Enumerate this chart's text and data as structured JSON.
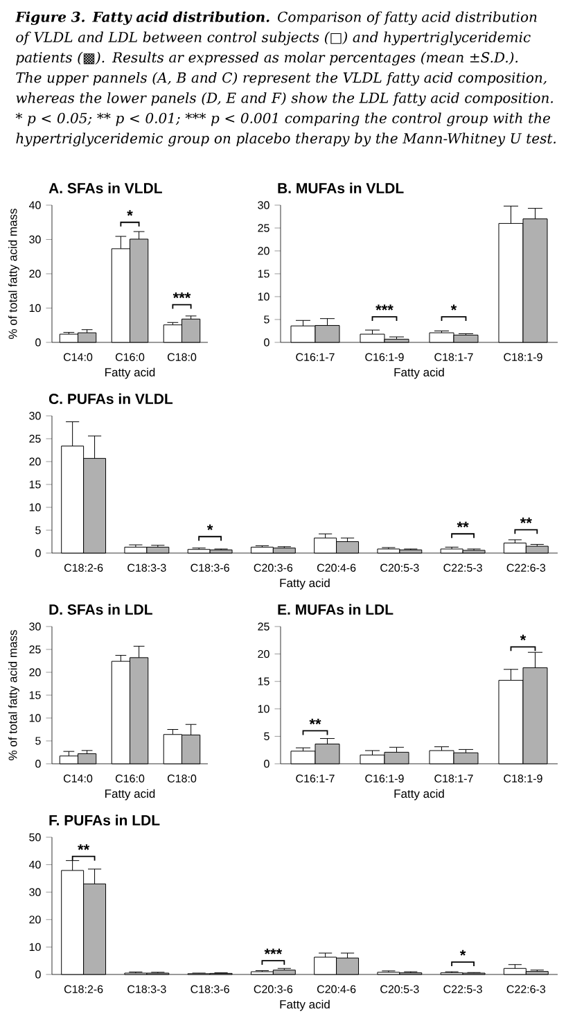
{
  "chart_data": [
    {
      "type": "bar",
      "title": "A. SFAs in VLDL",
      "xlabel": "Fatty acid",
      "ylabel": "% of total fatty acid mass",
      "categories": [
        "C14:0",
        "C16:0",
        "C18:0"
      ],
      "ylim": [
        0,
        40
      ],
      "yticks": [
        0,
        10,
        20,
        30,
        40
      ],
      "series": [
        {
          "color": "#ffffff",
          "values": [
            2.4,
            27.3,
            5.1
          ],
          "errors": [
            [
              2.4,
              2.9
            ],
            [
              27.3,
              30.9
            ],
            [
              5.1,
              5.8
            ]
          ]
        },
        {
          "color": "#b0b0b0",
          "values": [
            2.8,
            30.1,
            6.8
          ],
          "errors": [
            [
              2.8,
              3.7
            ],
            [
              30.1,
              32.3
            ],
            [
              6.8,
              7.7
            ]
          ]
        }
      ],
      "annotations": [
        "*",
        "***"
      ]
    },
    {
      "type": "bar",
      "title": "B. MUFAs in VLDL",
      "xlabel": "Fatty acid",
      "categories": [
        "C16:1-7",
        "C16:1-9",
        "C18:1-7",
        "C18:1-9"
      ],
      "ylim": [
        0,
        30
      ],
      "yticks": [
        0,
        5,
        10,
        15,
        20,
        25,
        30
      ],
      "series": [
        {
          "color": "#ffffff",
          "values": [
            3.6,
            1.8,
            2.1,
            26.0
          ],
          "errors": [
            [
              3.6,
              4.8
            ],
            [
              1.8,
              2.7
            ],
            [
              2.1,
              2.5
            ],
            [
              26.0,
              29.8
            ]
          ]
        },
        {
          "color": "#b0b0b0",
          "values": [
            3.7,
            0.7,
            1.6,
            27.0
          ],
          "errors": [
            [
              3.7,
              5.2
            ],
            [
              0.7,
              1.2
            ],
            [
              1.6,
              1.9
            ],
            [
              27.0,
              29.3
            ]
          ]
        }
      ],
      "annotations": [
        "***",
        "*"
      ]
    },
    {
      "type": "bar",
      "title": "C. PUFAs in VLDL",
      "xlabel": "Fatty acid",
      "categories": [
        "C18:2-6",
        "C18:3-3",
        "C18:3-6",
        "C20:3-6",
        "C20:4-6",
        "C20:5-3",
        "C22:5-3",
        "C22:6-3"
      ],
      "ylim": [
        0,
        30
      ],
      "yticks": [
        0,
        5,
        10,
        15,
        20,
        25,
        30
      ],
      "series": [
        {
          "color": "#ffffff",
          "values": [
            23.4,
            1.3,
            0.8,
            1.3,
            3.3,
            0.9,
            0.9,
            2.2
          ],
          "errors": [
            [
              23.4,
              28.7
            ],
            [
              1.3,
              1.8
            ],
            [
              0.8,
              1.1
            ],
            [
              1.3,
              1.6
            ],
            [
              3.3,
              4.2
            ],
            [
              0.9,
              1.2
            ],
            [
              0.9,
              1.3
            ],
            [
              2.2,
              2.9
            ]
          ]
        },
        {
          "color": "#b0b0b0",
          "values": [
            20.7,
            1.3,
            0.7,
            1.1,
            2.5,
            0.7,
            0.6,
            1.5
          ],
          "errors": [
            [
              20.7,
              25.6
            ],
            [
              1.3,
              1.7
            ],
            [
              0.7,
              0.9
            ],
            [
              1.1,
              1.4
            ],
            [
              2.5,
              3.3
            ],
            [
              0.7,
              0.9
            ],
            [
              0.6,
              0.9
            ],
            [
              1.5,
              1.9
            ]
          ]
        }
      ],
      "annotations": [
        "*",
        "**",
        "**"
      ]
    },
    {
      "type": "bar",
      "title": "D. SFAs in LDL",
      "xlabel": "Fatty acid",
      "ylabel": "% of total fatty acid mass",
      "categories": [
        "C14:0",
        "C16:0",
        "C18:0"
      ],
      "ylim": [
        0,
        30
      ],
      "yticks": [
        0,
        5,
        10,
        15,
        20,
        25,
        30
      ],
      "series": [
        {
          "color": "#ffffff",
          "values": [
            1.7,
            22.4,
            6.4
          ],
          "errors": [
            [
              1.7,
              2.7
            ],
            [
              22.4,
              23.7
            ],
            [
              6.4,
              7.5
            ]
          ]
        },
        {
          "color": "#b0b0b0",
          "values": [
            2.2,
            23.2,
            6.3
          ],
          "errors": [
            [
              2.2,
              2.9
            ],
            [
              23.2,
              25.7
            ],
            [
              6.3,
              8.6
            ]
          ]
        }
      ]
    },
    {
      "type": "bar",
      "title": "E. MUFAs in LDL",
      "xlabel": "Fatty acid",
      "categories": [
        "C16:1-7",
        "C16:1-9",
        "C18:1-7",
        "C18:1-9"
      ],
      "ylim": [
        0,
        25
      ],
      "yticks": [
        0,
        5,
        10,
        15,
        20,
        25
      ],
      "series": [
        {
          "color": "#ffffff",
          "values": [
            2.3,
            1.6,
            2.4,
            15.2
          ],
          "errors": [
            [
              2.3,
              2.9
            ],
            [
              1.6,
              2.4
            ],
            [
              2.4,
              3.1
            ],
            [
              15.2,
              17.2
            ]
          ]
        },
        {
          "color": "#b0b0b0",
          "values": [
            3.6,
            2.1,
            2.0,
            17.5
          ],
          "errors": [
            [
              3.6,
              4.6
            ],
            [
              2.1,
              3.0
            ],
            [
              2.0,
              2.6
            ],
            [
              17.5,
              20.3
            ]
          ]
        }
      ],
      "annotations": [
        "**",
        "*"
      ]
    },
    {
      "type": "bar",
      "title": "F. PUFAs in LDL",
      "xlabel": "Fatty acid",
      "categories": [
        "C18:2-6",
        "C18:3-3",
        "C18:3-6",
        "C20:3-6",
        "C20:4-6",
        "C20:5-3",
        "C22:5-3",
        "C22:6-3"
      ],
      "ylim": [
        0,
        50
      ],
      "yticks": [
        0,
        10,
        20,
        30,
        40,
        50
      ],
      "series": [
        {
          "color": "#ffffff",
          "values": [
            37.9,
            0.5,
            0.3,
            1.0,
            6.3,
            0.8,
            0.6,
            2.2
          ],
          "errors": [
            [
              37.9,
              41.5
            ],
            [
              0.5,
              0.9
            ],
            [
              0.3,
              0.5
            ],
            [
              1.0,
              1.4
            ],
            [
              6.3,
              7.8
            ],
            [
              0.8,
              1.3
            ],
            [
              0.6,
              1.0
            ],
            [
              2.2,
              3.6
            ]
          ]
        },
        {
          "color": "#b0b0b0",
          "values": [
            33.0,
            0.5,
            0.4,
            1.6,
            6.0,
            0.6,
            0.5,
            1.1
          ],
          "errors": [
            [
              33.0,
              38.4
            ],
            [
              0.5,
              0.8
            ],
            [
              0.4,
              0.6
            ],
            [
              1.6,
              2.2
            ],
            [
              6.0,
              7.8
            ],
            [
              0.6,
              1.0
            ],
            [
              0.5,
              0.7
            ],
            [
              1.1,
              1.6
            ]
          ]
        }
      ],
      "annotations": [
        "**",
        "***",
        "*"
      ]
    },
    {
      "type": "other",
      "annotations": [
        "**Figure 3. Fatty acid distribution.** Comparison of fatty acid distribution of VLDL and LDL between control subjects (□) and hypertriglyceridemic patients (▩). Results ar expressed as molar percentages (mean ±S.D.). The upper pannels (A, B and C) represent the VLDL fatty acid composition, whereas the lower panels (D, E and F) show the LDL fatty acid composition. * p < 0.05; ** p < 0.01; *** p < 0.001 comparing the control group with the hypertriglyceridemic group on placebo therapy by the Mann-Whitney U test."
      ]
    }
  ]
}
